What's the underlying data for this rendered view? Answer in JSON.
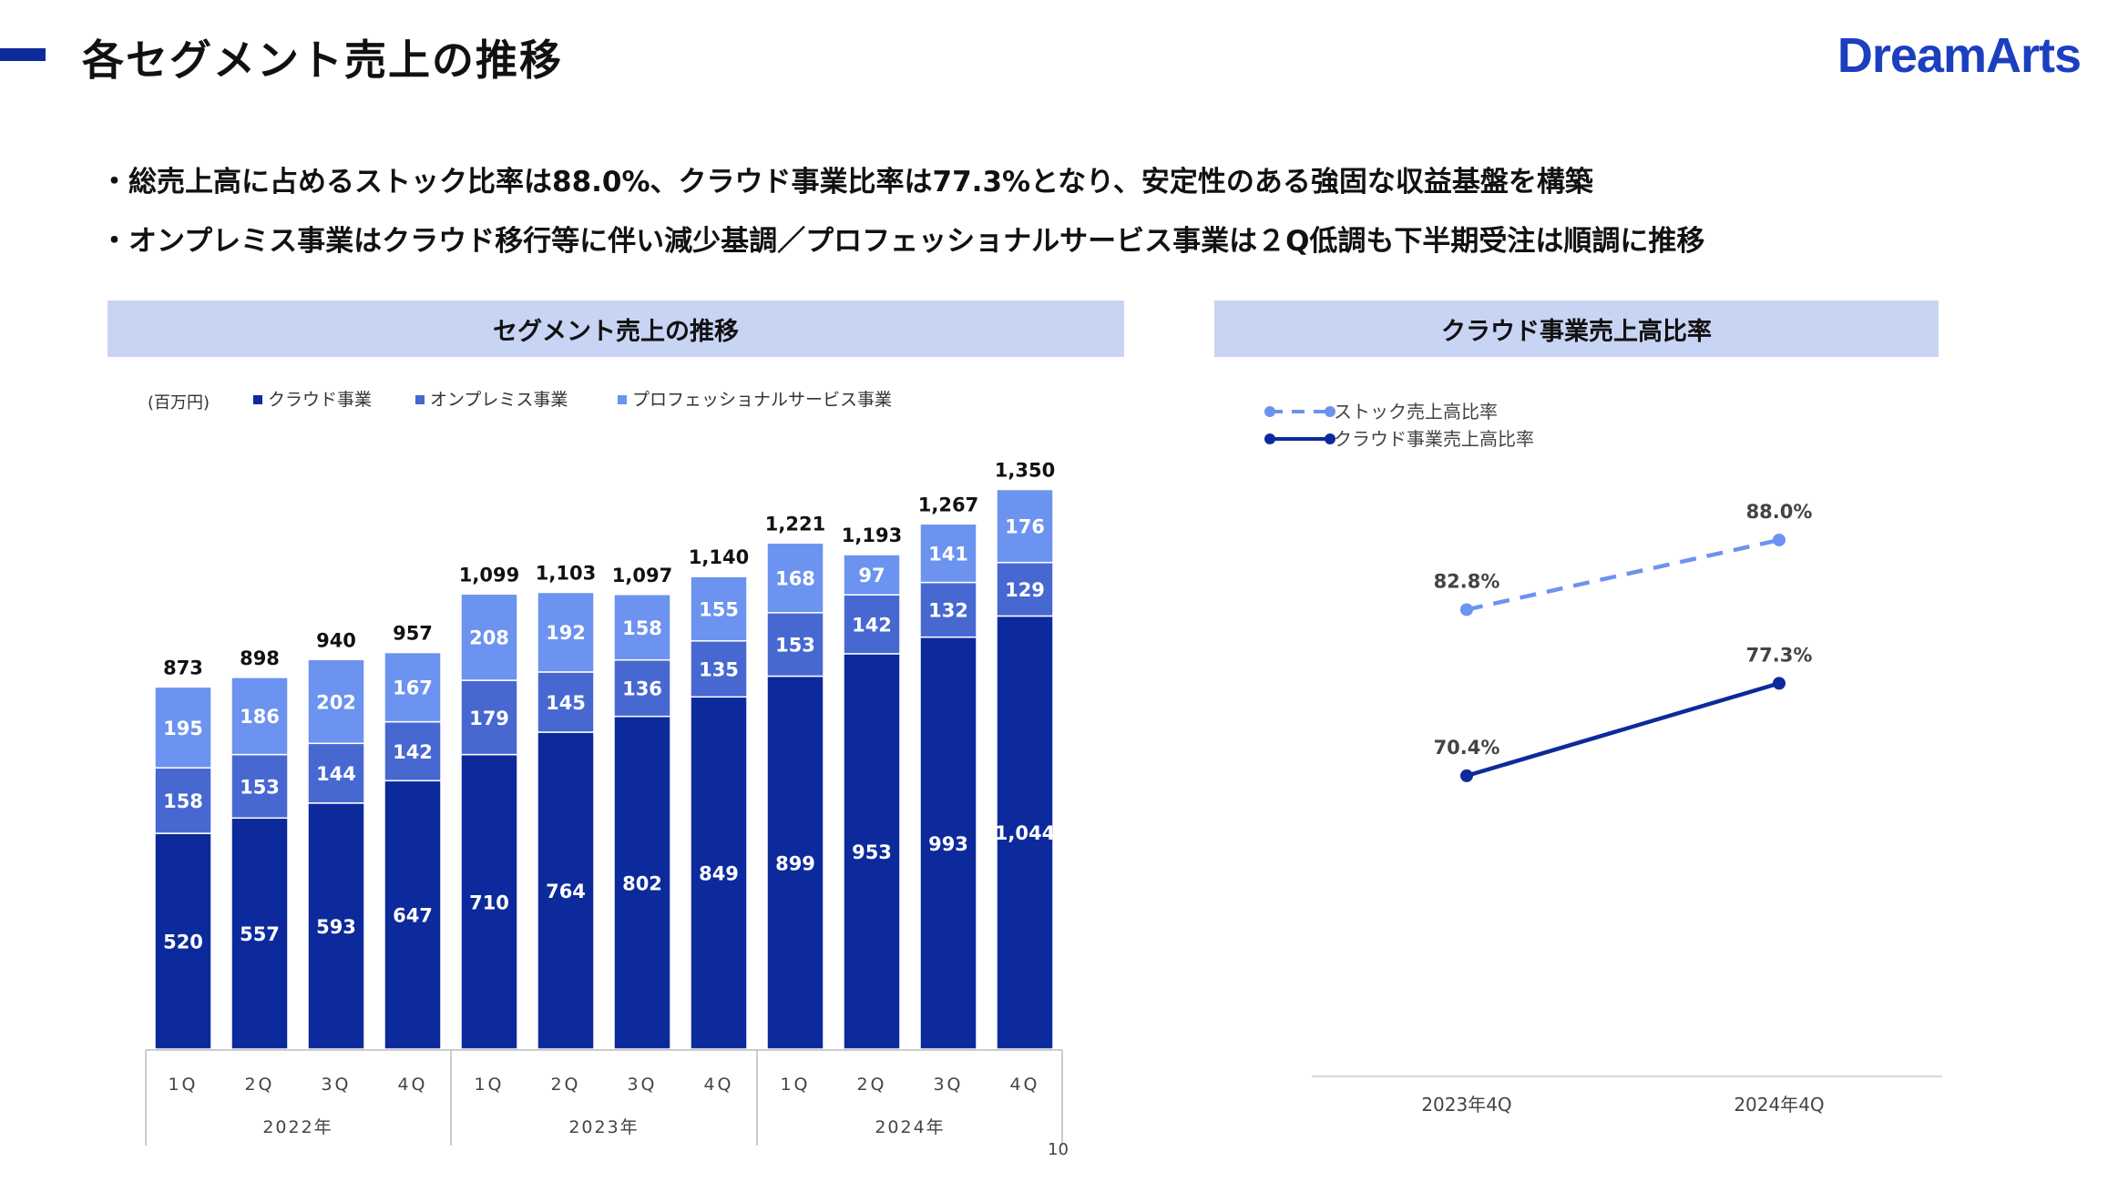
{
  "header": {
    "title": "各セグメント売上の推移",
    "logo_text": "DreamArts"
  },
  "bullets": [
    "・総売上高に占めるストック比率は88.0%、クラウド事業比率は77.3%となり、安定性のある強固な収益基盤を構築",
    "・オンプレミス事業はクラウド移行等に伴い減少基調／プロフェッショナルサービス事業は２Q低調も下半期受注は順調に推移"
  ],
  "panels": {
    "left_header": "セグメント売上の推移",
    "right_header": "クラウド事業売上高比率"
  },
  "page_number": "10",
  "colors": {
    "cloud": "#0d2a9c",
    "onpremise": "#4868d1",
    "professional": "#6b93ef",
    "header_band": "#c8d4f3",
    "accent": "#0d2a9c",
    "logo": "#1b3fc0"
  },
  "chart_data": [
    {
      "type": "bar",
      "stacked": true,
      "unit_label": "(百万円)",
      "categories": [
        "1Q",
        "2Q",
        "3Q",
        "4Q",
        "1Q",
        "2Q",
        "3Q",
        "4Q",
        "1Q",
        "2Q",
        "3Q",
        "4Q"
      ],
      "groups": [
        {
          "label": "2022年",
          "start": 0,
          "end": 3
        },
        {
          "label": "2023年",
          "start": 4,
          "end": 7
        },
        {
          "label": "2024年",
          "start": 8,
          "end": 11
        }
      ],
      "series": [
        {
          "name": "クラウド事業",
          "values": [
            520,
            557,
            593,
            647,
            710,
            764,
            802,
            849,
            899,
            953,
            993,
            1044
          ],
          "labels": [
            "520",
            "557",
            "593",
            "647",
            "710",
            "764",
            "802",
            "849",
            "899",
            "953",
            "993",
            "1,044"
          ]
        },
        {
          "name": "オンプレミス事業",
          "values": [
            158,
            153,
            144,
            142,
            179,
            145,
            136,
            135,
            153,
            142,
            132,
            129
          ],
          "labels": [
            "158",
            "153",
            "144",
            "142",
            "179",
            "145",
            "136",
            "135",
            "153",
            "142",
            "132",
            "129"
          ]
        },
        {
          "name": "プロフェッショナルサービス事業",
          "values": [
            195,
            186,
            202,
            167,
            208,
            192,
            158,
            155,
            168,
            97,
            141,
            176
          ],
          "labels": [
            "195",
            "186",
            "202",
            "167",
            "208",
            "192",
            "158",
            "155",
            "168",
            "97",
            "141",
            "176"
          ]
        }
      ],
      "totals": [
        "873",
        "898",
        "940",
        "957",
        "1,099",
        "1,103",
        "1,097",
        "1,140",
        "1,221",
        "1,193",
        "1,267",
        "1,350"
      ],
      "legend_position": "top-left",
      "grid": false
    },
    {
      "type": "line",
      "categories": [
        "2023年4Q",
        "2024年4Q"
      ],
      "series": [
        {
          "name": "ストック売上高比率",
          "style": "dashed",
          "values": [
            82.8,
            88.0
          ],
          "labels": [
            "82.8%",
            "88.0%"
          ]
        },
        {
          "name": "クラウド事業売上高比率",
          "style": "solid",
          "values": [
            70.4,
            77.3
          ],
          "labels": [
            "70.4%",
            "77.3%"
          ]
        }
      ],
      "ylim": [
        50,
        95
      ],
      "legend_position": "top-left",
      "grid": false
    }
  ]
}
